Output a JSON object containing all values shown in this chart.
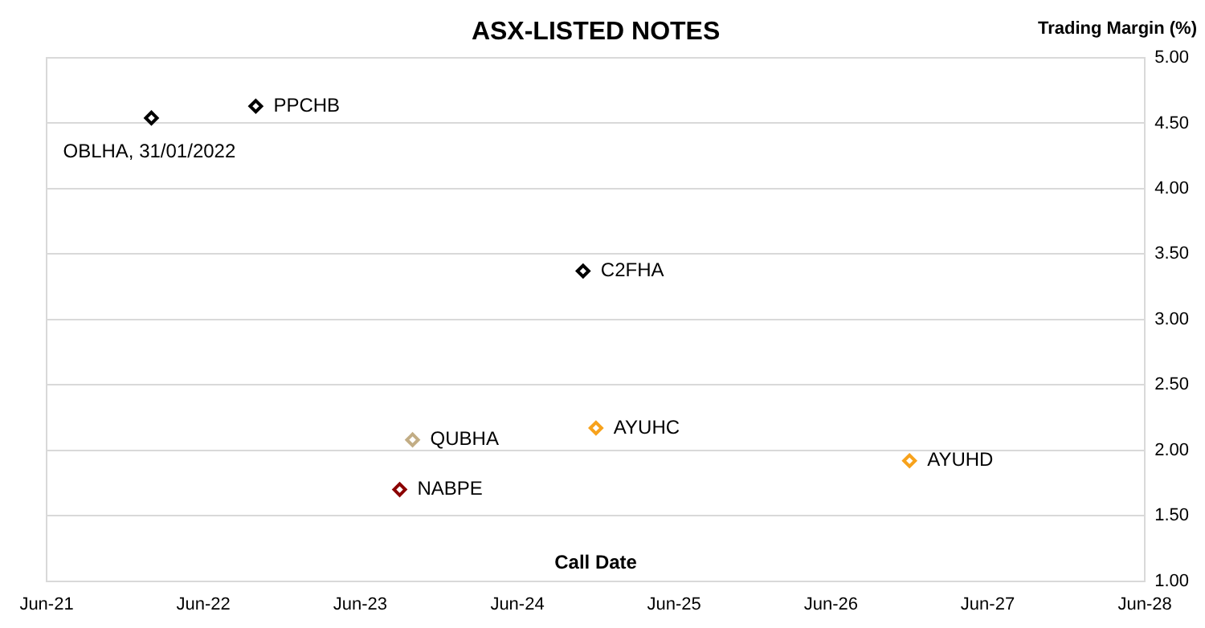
{
  "chart_data": {
    "type": "scatter",
    "title": "ASX-LISTED NOTES",
    "xlabel": "Call Date",
    "ylabel": "Trading Margin (%)",
    "series": [
      {
        "name": "PPCHB",
        "color": "#000000",
        "x": [
          "2022-10"
        ],
        "values": [
          4.63
        ]
      },
      {
        "name": "OBLHA, 31/01/2022",
        "color": "#000000",
        "x": [
          "2022-01-31"
        ],
        "values": [
          4.54
        ]
      },
      {
        "name": "C2FHA",
        "color": "#000000",
        "x": [
          "2024-11"
        ],
        "values": [
          3.37
        ]
      },
      {
        "name": "QUBHA",
        "color": "#c2ad85",
        "x": [
          "2023-10"
        ],
        "values": [
          2.08
        ]
      },
      {
        "name": "NABPE",
        "color": "#8b0000",
        "x": [
          "2023-09"
        ],
        "values": [
          1.7
        ]
      },
      {
        "name": "AYUHC",
        "color": "#f7a21c",
        "x": [
          "2024-12"
        ],
        "values": [
          2.17
        ]
      },
      {
        "name": "AYUHD",
        "color": "#f7a21c",
        "x": [
          "2026-12"
        ],
        "values": [
          1.92
        ]
      }
    ],
    "xlim": [
      "2021-06",
      "2028-06"
    ],
    "xticks": [
      {
        "value": "2021-06",
        "label": "Jun-21"
      },
      {
        "value": "2022-06",
        "label": "Jun-22"
      },
      {
        "value": "2023-06",
        "label": "Jun-23"
      },
      {
        "value": "2024-06",
        "label": "Jun-24"
      },
      {
        "value": "2025-06",
        "label": "Jun-25"
      },
      {
        "value": "2026-06",
        "label": "Jun-26"
      },
      {
        "value": "2027-06",
        "label": "Jun-27"
      },
      {
        "value": "2028-06",
        "label": "Jun-28"
      }
    ],
    "ylim": [
      1,
      5
    ],
    "yticks": [
      {
        "value": 1,
        "label": "1.00"
      },
      {
        "value": 1.5,
        "label": "1.50"
      },
      {
        "value": 2,
        "label": "2.00"
      },
      {
        "value": 2.5,
        "label": "2.50"
      },
      {
        "value": 3,
        "label": "3.00"
      },
      {
        "value": 3.5,
        "label": "3.50"
      },
      {
        "value": 4,
        "label": "4.00"
      },
      {
        "value": 4.5,
        "label": "4.50"
      },
      {
        "value": 5,
        "label": "5.00"
      }
    ],
    "grid": "y",
    "legend": false,
    "marker": "diamond"
  }
}
